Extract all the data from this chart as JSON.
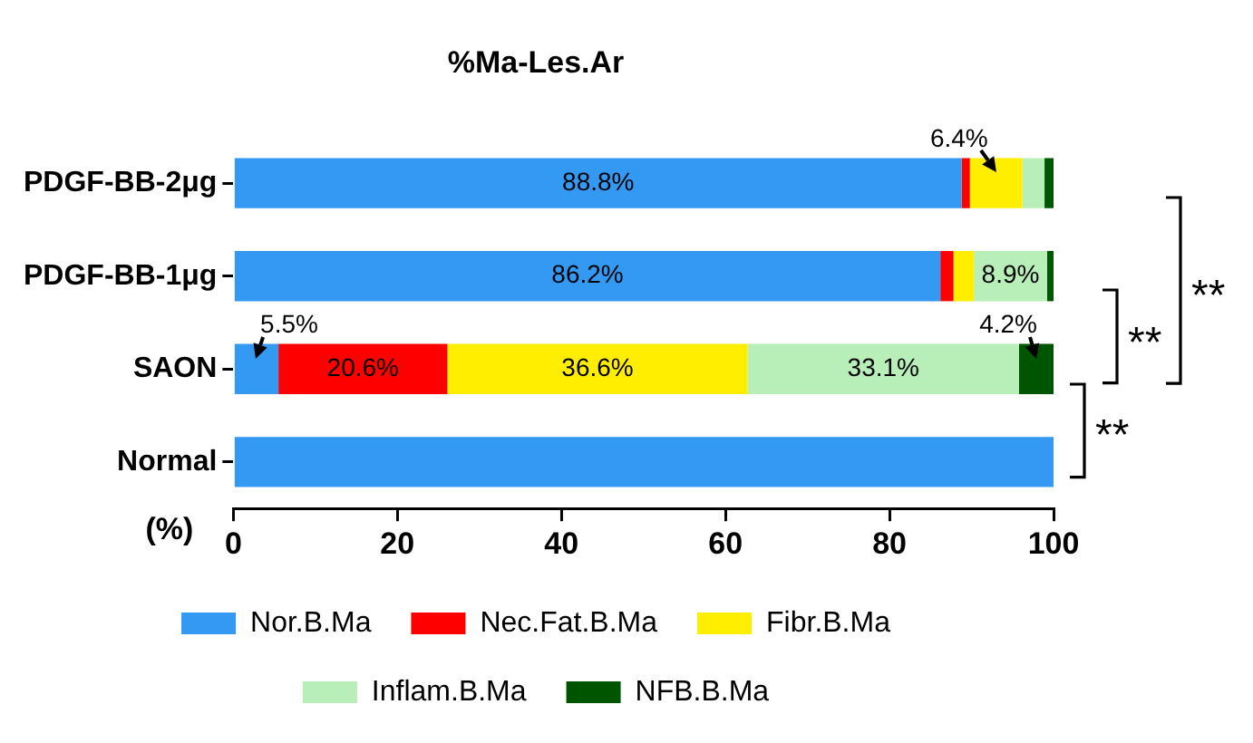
{
  "chart_data": {
    "type": "bar",
    "orientation": "horizontal",
    "stacked": true,
    "title": "%Ma-Les.Ar",
    "xlabel": "(%)",
    "categories": [
      "PDGF-BB-2μg",
      "PDGF-BB-1μg",
      "SAON",
      "Normal"
    ],
    "series": [
      {
        "name": "Nor.B.Ma",
        "color": "#3399f3",
        "values": [
          88.8,
          86.2,
          5.5,
          100
        ],
        "value_labels": [
          "88.8%",
          "86.2%",
          "5.5%",
          null
        ]
      },
      {
        "name": "Nec.Fat.B.Ma",
        "color": "#ff0000",
        "values": [
          1.0,
          1.6,
          20.6,
          0
        ],
        "value_labels": [
          null,
          null,
          "20.6%",
          null
        ]
      },
      {
        "name": "Fibr.B.Ma",
        "color": "#ffee00",
        "values": [
          6.4,
          2.5,
          36.6,
          0
        ],
        "value_labels": [
          "6.4%",
          null,
          "36.6%",
          null
        ]
      },
      {
        "name": "Inflam.B.Ma",
        "color": "#b8efb8",
        "values": [
          2.7,
          8.9,
          33.1,
          0
        ],
        "value_labels": [
          null,
          "8.9%",
          "33.1%",
          null
        ]
      },
      {
        "name": "NFB.B.Ma",
        "color": "#005500",
        "values": [
          1.1,
          0.8,
          4.2,
          0
        ],
        "value_labels": [
          null,
          null,
          "4.2%",
          null
        ]
      }
    ],
    "xlim": [
      0,
      100
    ],
    "xticks": [
      0,
      20,
      40,
      60,
      80,
      100
    ],
    "grid": false,
    "legend": "bottom",
    "annotations": [
      "**",
      "**",
      "**"
    ]
  }
}
